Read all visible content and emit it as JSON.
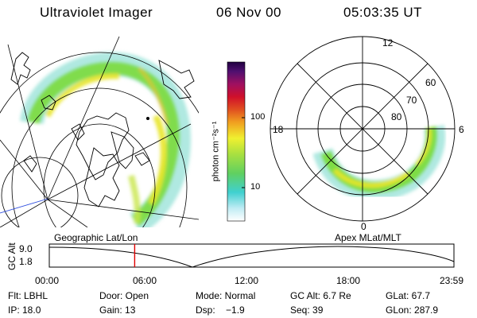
{
  "header": {
    "instrument": "Ultraviolet Imager",
    "date": "06 Nov 00",
    "time": "05:03:35 UT"
  },
  "colorbar": {
    "unit_label": "photon cm⁻²s⁻¹",
    "ticks": [
      "100",
      "10"
    ]
  },
  "polar_plot": {
    "mlt_labels": [
      "12",
      "18",
      "6",
      "0"
    ],
    "lat_labels": [
      "60",
      "70",
      "80"
    ]
  },
  "timeline": {
    "left_label": "Geographic Lat/Lon",
    "right_label": "Apex MLat/MLT",
    "y_axis_label": "GC Alt",
    "y_ticks": [
      "9.0",
      "1.8"
    ],
    "x_ticks": [
      "00:00",
      "06:00",
      "12:00",
      "18:00",
      "23:59"
    ],
    "current_time_fraction": 0.211,
    "colors": {
      "marker": "#e00000"
    }
  },
  "info": {
    "flt": "Flt: LBHL",
    "door": "Door: Open",
    "mode": "Mode: Normal",
    "gc_alt": "GC Alt: 6.7 Re",
    "glat": "GLat: 67.7",
    "ip": "IP: 18.0",
    "gain": "Gain: 13",
    "dsp": "Dsp:    −1.9",
    "seq": "Seq: 39",
    "glon": "GLon: 287.9"
  }
}
